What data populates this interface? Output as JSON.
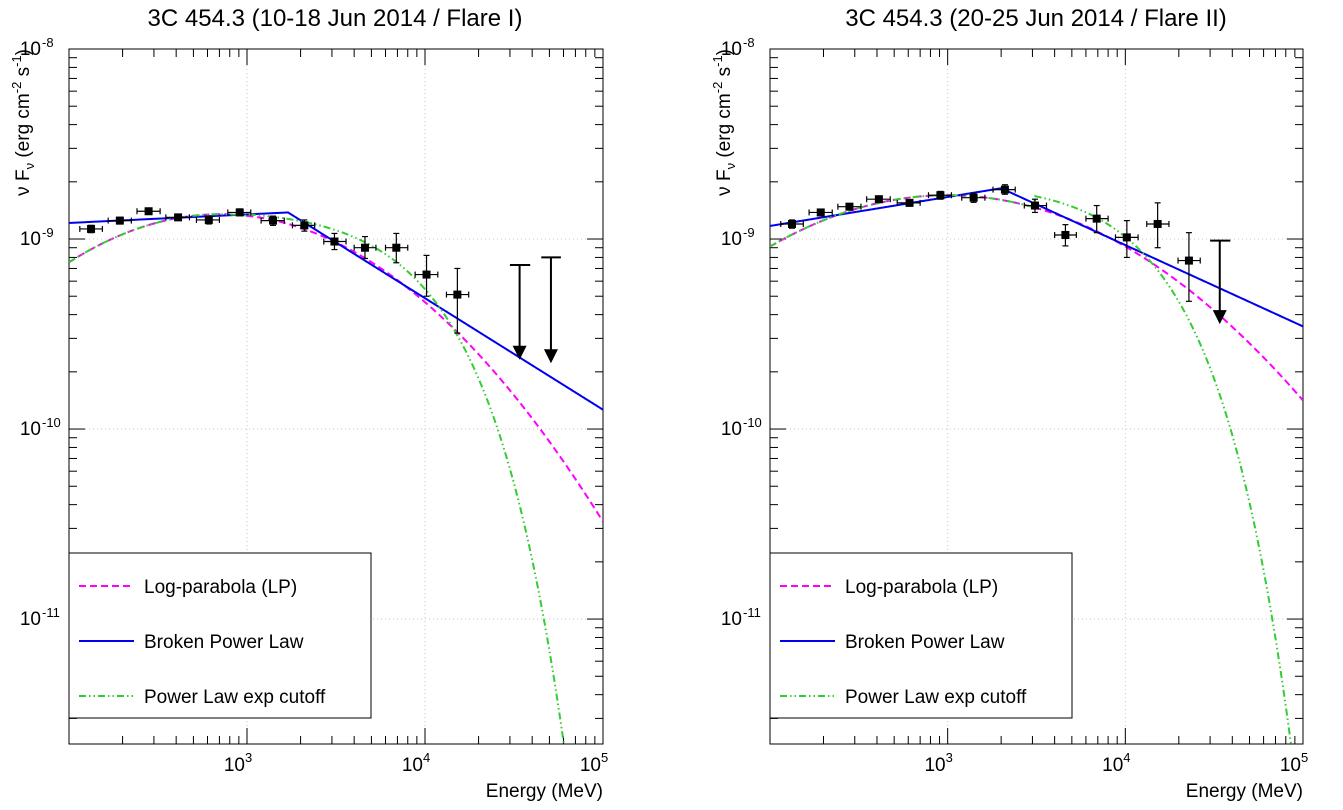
{
  "chart_data": [
    {
      "type": "scatter",
      "title": "3C 454.3 (10-18 Jun 2014 / Flare I)",
      "xlabel": "Energy (MeV)",
      "ylabel": "ν F_ν (erg cm^-2 s^-1)",
      "ylabel_parts": {
        "pre": "ν F",
        "sub": "ν",
        "mid1": " (erg cm",
        "sup1": "-2",
        "mid2": " s",
        "sup2": "-1",
        "post": ")"
      },
      "x_scale": "log",
      "y_scale": "log",
      "xlim": [
        100,
        100000
      ],
      "ylim": [
        2.2e-12,
        1e-08
      ],
      "x_tick_labels": [
        {
          "value": 1000,
          "base": "10",
          "exp": "3"
        },
        {
          "value": 10000,
          "base": "10",
          "exp": "4"
        },
        {
          "value": 100000,
          "base": "10",
          "exp": "5"
        }
      ],
      "y_tick_labels": [
        {
          "value": 1e-08,
          "base": "10",
          "exp": "-8"
        },
        {
          "value": 1e-09,
          "base": "10",
          "exp": "-9"
        },
        {
          "value": 1e-10,
          "base": "10",
          "exp": "-10"
        },
        {
          "value": 1e-11,
          "base": "10",
          "exp": "-11"
        }
      ],
      "grid": true,
      "points": [
        {
          "x": 133,
          "y": 1.13e-09,
          "xlo": 115,
          "xhi": 154,
          "ylo": 1.08e-09,
          "yhi": 1.18e-09
        },
        {
          "x": 193,
          "y": 1.25e-09,
          "xlo": 166,
          "xhi": 224,
          "ylo": 1.2e-09,
          "yhi": 1.3e-09
        },
        {
          "x": 280,
          "y": 1.4e-09,
          "xlo": 241,
          "xhi": 325,
          "ylo": 1.36e-09,
          "yhi": 1.45e-09
        },
        {
          "x": 410,
          "y": 1.3e-09,
          "xlo": 350,
          "xhi": 475,
          "ylo": 1.26e-09,
          "yhi": 1.34e-09
        },
        {
          "x": 610,
          "y": 1.26e-09,
          "xlo": 520,
          "xhi": 700,
          "ylo": 1.2e-09,
          "yhi": 1.32e-09
        },
        {
          "x": 910,
          "y": 1.38e-09,
          "xlo": 780,
          "xhi": 1050,
          "ylo": 1.33e-09,
          "yhi": 1.44e-09
        },
        {
          "x": 1400,
          "y": 1.25e-09,
          "xlo": 1200,
          "xhi": 1620,
          "ylo": 1.18e-09,
          "yhi": 1.32e-09
        },
        {
          "x": 2100,
          "y": 1.18e-09,
          "xlo": 1800,
          "xhi": 2400,
          "ylo": 1.1e-09,
          "yhi": 1.26e-09
        },
        {
          "x": 3100,
          "y": 9.7e-10,
          "xlo": 2700,
          "xhi": 3600,
          "ylo": 8.8e-10,
          "yhi": 1.07e-09
        },
        {
          "x": 4600,
          "y": 9e-10,
          "xlo": 4000,
          "xhi": 5300,
          "ylo": 7.9e-10,
          "yhi": 1.03e-09
        },
        {
          "x": 6900,
          "y": 9e-10,
          "xlo": 6000,
          "xhi": 8000,
          "ylo": 7.5e-10,
          "yhi": 1.07e-09
        },
        {
          "x": 10200,
          "y": 6.5e-10,
          "xlo": 8800,
          "xhi": 11800,
          "ylo": 5e-10,
          "yhi": 8.2e-10
        },
        {
          "x": 15200,
          "y": 5.1e-10,
          "xlo": 13200,
          "xhi": 17600,
          "ylo": 3.2e-10,
          "yhi": 7e-10
        }
      ],
      "upper_limits": [
        {
          "x": 34000,
          "y": 7.3e-10,
          "xlo": 30000,
          "xhi": 39000,
          "arrow_to": 2.4e-10
        },
        {
          "x": 51000,
          "y": 8e-10,
          "xlo": 45000,
          "xhi": 58000,
          "arrow_to": 2.3e-10
        }
      ],
      "series": [
        {
          "name": "Log-parabola (LP)",
          "color": "#ff00ff",
          "style": "dashed",
          "model": "lp",
          "params": {
            "k": 1.35e-09,
            "peak_log10": 2.85,
            "b": 0.35
          }
        },
        {
          "name": "Broken Power Law",
          "color": "#0000ee",
          "style": "solid",
          "model": "bpl",
          "params": {
            "k": 1.38e-09,
            "break": 1700,
            "slope_low": 0.045,
            "slope_high": -0.5867,
            "xmin": 100
          }
        },
        {
          "name": "Power Law exp cutoff",
          "color": "#33cc33",
          "style": "dashdotdot",
          "model": "plec",
          "params": {
            "k": 1.35e-09,
            "pivot": 1000,
            "slope": 0.04,
            "cutoff": 9000,
            "xmin": 1000,
            "join_model": "lp"
          }
        }
      ],
      "legend_position": "bottom-left"
    },
    {
      "type": "scatter",
      "title": "3C 454.3 (20-25 Jun 2014 / Flare II)",
      "xlabel": "Energy (MeV)",
      "ylabel": "ν F_ν (erg cm^-2 s^-1)",
      "ylabel_parts": {
        "pre": "ν F",
        "sub": "ν",
        "mid1": " (erg cm",
        "sup1": "-2",
        "mid2": " s",
        "sup2": "-1",
        "post": ")"
      },
      "x_scale": "log",
      "y_scale": "log",
      "xlim": [
        100,
        100000
      ],
      "ylim": [
        2.2e-12,
        1e-08
      ],
      "x_tick_labels": [
        {
          "value": 1000,
          "base": "10",
          "exp": "3"
        },
        {
          "value": 10000,
          "base": "10",
          "exp": "4"
        },
        {
          "value": 100000,
          "base": "10",
          "exp": "5"
        }
      ],
      "y_tick_labels": [
        {
          "value": 1e-08,
          "base": "10",
          "exp": "-8"
        },
        {
          "value": 1e-09,
          "base": "10",
          "exp": "-9"
        },
        {
          "value": 1e-10,
          "base": "10",
          "exp": "-10"
        },
        {
          "value": 1e-11,
          "base": "10",
          "exp": "-11"
        }
      ],
      "grid": true,
      "points": [
        {
          "x": 133,
          "y": 1.2e-09,
          "xlo": 115,
          "xhi": 154,
          "ylo": 1.14e-09,
          "yhi": 1.26e-09
        },
        {
          "x": 193,
          "y": 1.38e-09,
          "xlo": 166,
          "xhi": 224,
          "ylo": 1.33e-09,
          "yhi": 1.43e-09
        },
        {
          "x": 280,
          "y": 1.48e-09,
          "xlo": 241,
          "xhi": 325,
          "ylo": 1.43e-09,
          "yhi": 1.53e-09
        },
        {
          "x": 410,
          "y": 1.62e-09,
          "xlo": 350,
          "xhi": 475,
          "ylo": 1.57e-09,
          "yhi": 1.67e-09
        },
        {
          "x": 610,
          "y": 1.55e-09,
          "xlo": 520,
          "xhi": 700,
          "ylo": 1.49e-09,
          "yhi": 1.61e-09
        },
        {
          "x": 910,
          "y": 1.7e-09,
          "xlo": 780,
          "xhi": 1050,
          "ylo": 1.62e-09,
          "yhi": 1.78e-09
        },
        {
          "x": 1400,
          "y": 1.65e-09,
          "xlo": 1200,
          "xhi": 1620,
          "ylo": 1.56e-09,
          "yhi": 1.74e-09
        },
        {
          "x": 2100,
          "y": 1.82e-09,
          "xlo": 1800,
          "xhi": 2400,
          "ylo": 1.72e-09,
          "yhi": 1.93e-09
        },
        {
          "x": 3100,
          "y": 1.5e-09,
          "xlo": 2700,
          "xhi": 3600,
          "ylo": 1.38e-09,
          "yhi": 1.62e-09
        },
        {
          "x": 4600,
          "y": 1.05e-09,
          "xlo": 4000,
          "xhi": 5300,
          "ylo": 9.2e-10,
          "yhi": 1.19e-09
        },
        {
          "x": 6900,
          "y": 1.28e-09,
          "xlo": 6000,
          "xhi": 8000,
          "ylo": 1.08e-09,
          "yhi": 1.5e-09
        },
        {
          "x": 10200,
          "y": 1.02e-09,
          "xlo": 8800,
          "xhi": 11800,
          "ylo": 8e-10,
          "yhi": 1.25e-09
        },
        {
          "x": 15200,
          "y": 1.2e-09,
          "xlo": 13200,
          "xhi": 17600,
          "ylo": 9e-10,
          "yhi": 1.55e-09
        },
        {
          "x": 22800,
          "y": 7.7e-10,
          "xlo": 19800,
          "xhi": 26400,
          "ylo": 4.7e-10,
          "yhi": 1.08e-09
        }
      ],
      "upper_limits": [
        {
          "x": 34000,
          "y": 9.8e-10,
          "xlo": 30000,
          "xhi": 39000,
          "arrow_to": 3.7e-10
        }
      ],
      "series": [
        {
          "name": "Log-parabola (LP)",
          "color": "#ff00ff",
          "style": "dashed",
          "model": "lp",
          "params": {
            "k": 1.7e-09,
            "peak_log10": 3.0,
            "b": 0.27
          }
        },
        {
          "name": "Broken Power Law",
          "color": "#0000ee",
          "style": "solid",
          "model": "bpl",
          "params": {
            "k": 1.85e-09,
            "break": 2000,
            "slope_low": 0.1525,
            "slope_high": -0.428,
            "xmin": 100
          }
        },
        {
          "name": "Power Law exp cutoff",
          "color": "#33cc33",
          "style": "dashdotdot",
          "model": "plec",
          "params": {
            "k": 1.68e-09,
            "pivot": 3100,
            "slope": 0.07,
            "cutoff": 12000,
            "xmin": 3100,
            "join_model": "lp"
          }
        }
      ],
      "legend_position": "bottom-left"
    }
  ]
}
